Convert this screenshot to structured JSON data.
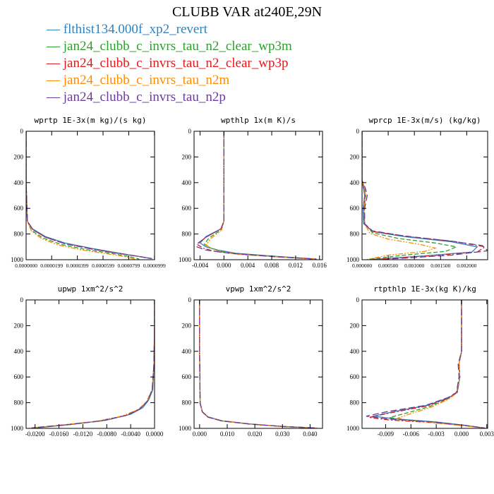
{
  "title": "CLUBB VAR at240E,29N",
  "colors": {
    "blue": "#3182bd",
    "green": "#2ca02c",
    "red": "#e31a1c",
    "orange": "#ff8c00",
    "purple": "#6a3d9a"
  },
  "legend": [
    {
      "name": "flthist134.000f_xp2_revert",
      "color": "#3182bd",
      "dash": "solid"
    },
    {
      "name": "jan24_clubb_c_invrs_tau_n2_clear_wp3m",
      "color": "#2ca02c",
      "dash": "dash"
    },
    {
      "name": "jan24_clubb_c_invrs_tau_n2_clear_wp3p",
      "color": "#e31a1c",
      "dash": "dashdot"
    },
    {
      "name": "jan24_clubb_c_invrs_tau_n2m",
      "color": "#ff8c00",
      "dash": "dashdotdot"
    },
    {
      "name": "jan24_clubb_c_invrs_tau_n2p",
      "color": "#6a3d9a",
      "dash": "longdash"
    }
  ],
  "chart_data": [
    {
      "type": "line",
      "title": "wprtp  1E-3x(m kg)/(s kg)",
      "xlim": [
        0.0,
        0.0001
      ],
      "ylim": [
        1000,
        0
      ],
      "xticks": [
        "0.0000000",
        "0.0000199",
        "0.0000399",
        "0.0000599",
        "0.0000799",
        "0.0000999"
      ],
      "yticks": [
        "0",
        "200",
        "400",
        "600",
        "800",
        "1000"
      ],
      "series": [
        {
          "name": "flthist134.000f_xp2_revert",
          "x": [
            0,
            0,
            1e-06,
            5e-06,
            1.5e-05,
            3e-05,
            5e-05,
            7e-05,
            8.5e-05,
            9.7e-05
          ],
          "y": [
            0,
            400,
            700,
            760,
            820,
            870,
            910,
            945,
            970,
            990
          ]
        },
        {
          "name": "jan24_clubb_c_invrs_tau_n2_clear_wp3m",
          "x": [
            0,
            0,
            1e-06,
            4e-06,
            1.3e-05,
            2.7e-05,
            4.6e-05,
            6.6e-05,
            8e-05,
            8.8e-05
          ],
          "y": [
            0,
            400,
            700,
            770,
            830,
            880,
            920,
            950,
            975,
            995
          ]
        },
        {
          "name": "jan24_clubb_c_invrs_tau_n2_clear_wp3p",
          "x": [
            0,
            0,
            1e-06,
            5e-06,
            1.5e-05,
            3e-05,
            5e-05,
            7e-05,
            8.6e-05,
            9.8e-05
          ],
          "y": [
            0,
            400,
            700,
            765,
            825,
            875,
            915,
            948,
            972,
            992
          ]
        },
        {
          "name": "jan24_clubb_c_invrs_tau_n2m",
          "x": [
            0,
            0,
            1e-06,
            4e-06,
            1.2e-05,
            2.5e-05,
            4.4e-05,
            6.4e-05,
            7.8e-05,
            8.5e-05
          ],
          "y": [
            0,
            400,
            700,
            775,
            835,
            885,
            925,
            955,
            978,
            997
          ]
        },
        {
          "name": "jan24_clubb_c_invrs_tau_n2p",
          "x": [
            0,
            0,
            1e-06,
            5e-06,
            1.5e-05,
            3e-05,
            5e-05,
            7e-05,
            8.6e-05,
            9.8e-05
          ],
          "y": [
            0,
            400,
            700,
            765,
            825,
            875,
            915,
            948,
            972,
            992
          ]
        }
      ]
    },
    {
      "type": "line",
      "title": "wpthlp  1x(m K)/s",
      "xlim": [
        -0.005,
        0.0165
      ],
      "ylim": [
        1000,
        0
      ],
      "xticks": [
        "-0.004",
        "0.000",
        "0.004",
        "0.008",
        "0.012",
        "0.016"
      ],
      "yticks": [
        "0",
        "200",
        "400",
        "600",
        "800",
        "1000"
      ],
      "series": [
        {
          "name": "flthist134.000f_xp2_revert",
          "x": [
            0,
            0,
            0,
            -0.0005,
            -0.003,
            -0.004,
            -0.003,
            -0.001,
            0.002,
            0.009,
            0.0155
          ],
          "y": [
            0,
            400,
            700,
            760,
            820,
            870,
            900,
            925,
            950,
            975,
            995
          ]
        },
        {
          "name": "jan24_clubb_c_invrs_tau_n2_clear_wp3m",
          "x": [
            0,
            0,
            0,
            -0.0004,
            -0.0025,
            -0.0033,
            -0.0022,
            -0.0005,
            0.0025,
            0.0095,
            0.0155
          ],
          "y": [
            0,
            400,
            700,
            765,
            830,
            880,
            910,
            935,
            955,
            978,
            995
          ]
        },
        {
          "name": "jan24_clubb_c_invrs_tau_n2_clear_wp3p",
          "x": [
            0,
            0,
            0,
            -0.0005,
            -0.003,
            -0.0045,
            -0.0035,
            -0.0015,
            0.002,
            0.009,
            0.0155
          ],
          "y": [
            0,
            400,
            700,
            760,
            825,
            880,
            910,
            935,
            955,
            978,
            995
          ]
        },
        {
          "name": "jan24_clubb_c_invrs_tau_n2m",
          "x": [
            0,
            0,
            0,
            -0.0004,
            -0.0022,
            -0.003,
            -0.002,
            -0.0005,
            0.0025,
            0.0095,
            0.0155
          ],
          "y": [
            0,
            400,
            700,
            770,
            835,
            885,
            915,
            940,
            958,
            980,
            995
          ]
        },
        {
          "name": "jan24_clubb_c_invrs_tau_n2p",
          "x": [
            0,
            0,
            0,
            -0.0005,
            -0.003,
            -0.0043,
            -0.0045,
            -0.003,
            0.001,
            0.008,
            0.0155
          ],
          "y": [
            0,
            400,
            700,
            760,
            825,
            870,
            900,
            925,
            950,
            975,
            995
          ]
        }
      ]
    },
    {
      "type": "line",
      "title": "wprcp  1E-3x(m/s) (kg/kg)",
      "xlim": [
        0.0,
        0.0024
      ],
      "ylim": [
        1000,
        0
      ],
      "xticks": [
        "0.000000",
        "0.000500",
        "0.001000",
        "0.001500",
        "0.002000"
      ],
      "yticks": [
        "0",
        "200",
        "400",
        "600",
        "800",
        "1000"
      ],
      "series": [
        {
          "name": "flthist134.000f_xp2_revert",
          "x": [
            0,
            0,
            3e-05,
            5e-05,
            2e-05,
            3e-05,
            0.0002,
            0.0008,
            0.0017,
            0.0022,
            0.0021,
            0.0012,
            0.0002
          ],
          "y": [
            0,
            380,
            450,
            500,
            600,
            720,
            780,
            820,
            860,
            900,
            940,
            970,
            998
          ]
        },
        {
          "name": "jan24_clubb_c_invrs_tau_n2_clear_wp3m",
          "x": [
            0,
            0,
            5e-05,
            7e-05,
            4e-05,
            5e-05,
            0.0002,
            0.0007,
            0.0014,
            0.0018,
            0.0016,
            0.0008,
            0.0001
          ],
          "y": [
            0,
            380,
            450,
            500,
            600,
            720,
            790,
            835,
            870,
            900,
            935,
            965,
            998
          ]
        },
        {
          "name": "jan24_clubb_c_invrs_tau_n2_clear_wp3p",
          "x": [
            0,
            0,
            4e-05,
            6e-05,
            3e-05,
            4e-05,
            0.0002,
            0.0009,
            0.0018,
            0.00235,
            0.0022,
            0.0013,
            0.0002
          ],
          "y": [
            0,
            380,
            450,
            500,
            600,
            720,
            780,
            820,
            860,
            900,
            940,
            970,
            998
          ]
        },
        {
          "name": "jan24_clubb_c_invrs_tau_n2m",
          "x": [
            0,
            0,
            5e-05,
            7e-05,
            4e-05,
            5e-05,
            0.00015,
            0.0005,
            0.0011,
            0.0014,
            0.0012,
            0.0005,
            0.0001
          ],
          "y": [
            0,
            380,
            450,
            500,
            600,
            720,
            795,
            840,
            880,
            910,
            935,
            965,
            998
          ]
        },
        {
          "name": "jan24_clubb_c_invrs_tau_n2p",
          "x": [
            0,
            0,
            6e-05,
            0.0001,
            5e-05,
            5e-05,
            0.0002,
            0.0008,
            0.0017,
            0.0023,
            0.0024,
            0.0017,
            0.0004
          ],
          "y": [
            0,
            380,
            440,
            500,
            600,
            720,
            775,
            815,
            855,
            890,
            930,
            965,
            998
          ]
        }
      ]
    },
    {
      "type": "line",
      "title": "upwp  1xm^2/s^2",
      "xlim": [
        -0.0215,
        0.0
      ],
      "ylim": [
        1000,
        0
      ],
      "xticks": [
        "-0.0200",
        "-0.0160",
        "-0.0120",
        "-0.0080",
        "-0.0040",
        "0.0000"
      ],
      "yticks": [
        "0",
        "200",
        "400",
        "600",
        "800",
        "1000"
      ],
      "series": [
        {
          "name": "flthist134.000f_xp2_revert",
          "x": [
            0,
            0,
            -0.0001,
            -0.0003,
            -0.001,
            -0.002,
            -0.004,
            -0.008,
            -0.014,
            -0.0195
          ],
          "y": [
            0,
            200,
            500,
            700,
            780,
            840,
            890,
            935,
            970,
            995
          ]
        },
        {
          "name": "jan24_clubb_c_invrs_tau_n2_clear_wp3m",
          "x": [
            0,
            0,
            -0.0001,
            -0.0004,
            -0.0012,
            -0.0024,
            -0.0045,
            -0.0085,
            -0.0145,
            -0.02
          ],
          "y": [
            0,
            200,
            500,
            700,
            785,
            845,
            895,
            940,
            972,
            996
          ]
        },
        {
          "name": "jan24_clubb_c_invrs_tau_n2_clear_wp3p",
          "x": [
            0,
            0,
            -0.0001,
            -0.0004,
            -0.0012,
            -0.0025,
            -0.0048,
            -0.009,
            -0.015,
            -0.0205
          ],
          "y": [
            0,
            200,
            500,
            700,
            790,
            850,
            900,
            942,
            973,
            996
          ]
        },
        {
          "name": "jan24_clubb_c_invrs_tau_n2m",
          "x": [
            0,
            0,
            -0.0001,
            -0.0004,
            -0.0014,
            -0.0028,
            -0.0055,
            -0.0098,
            -0.016,
            -0.021
          ],
          "y": [
            0,
            200,
            500,
            700,
            795,
            855,
            905,
            945,
            975,
            997
          ]
        },
        {
          "name": "jan24_clubb_c_invrs_tau_n2p",
          "x": [
            0,
            0,
            -0.0001,
            -0.0004,
            -0.0012,
            -0.0025,
            -0.0048,
            -0.009,
            -0.015,
            -0.0205
          ],
          "y": [
            0,
            200,
            500,
            700,
            790,
            850,
            900,
            942,
            973,
            996
          ]
        }
      ]
    },
    {
      "type": "line",
      "title": "vpwp  1xm^2/s^2",
      "xlim": [
        -0.002,
        0.0445
      ],
      "ylim": [
        1000,
        0
      ],
      "xticks": [
        "0.000",
        "0.010",
        "0.020",
        "0.030",
        "0.040"
      ],
      "yticks": [
        "0",
        "200",
        "400",
        "600",
        "800",
        "1000"
      ],
      "series": [
        {
          "name": "flthist134.000f_xp2_revert",
          "x": [
            0,
            0,
            0.0002,
            0.001,
            0.003,
            0.008,
            0.018,
            0.03,
            0.042
          ],
          "y": [
            0,
            400,
            800,
            870,
            910,
            940,
            965,
            985,
            997
          ]
        },
        {
          "name": "jan24_clubb_c_invrs_tau_n2_clear_wp3m",
          "x": [
            0,
            0,
            0.0002,
            0.001,
            0.003,
            0.008,
            0.018,
            0.03,
            0.042
          ],
          "y": [
            0,
            400,
            805,
            872,
            912,
            942,
            966,
            985,
            997
          ]
        },
        {
          "name": "jan24_clubb_c_invrs_tau_n2_clear_wp3p",
          "x": [
            0,
            0,
            0.0002,
            0.001,
            0.003,
            0.008,
            0.018,
            0.03,
            0.0425
          ],
          "y": [
            0,
            400,
            805,
            872,
            912,
            942,
            966,
            985,
            997
          ]
        },
        {
          "name": "jan24_clubb_c_invrs_tau_n2m",
          "x": [
            0,
            0,
            0.0002,
            0.001,
            0.003,
            0.008,
            0.018,
            0.03,
            0.042
          ],
          "y": [
            0,
            400,
            808,
            875,
            914,
            943,
            967,
            986,
            997
          ]
        },
        {
          "name": "jan24_clubb_c_invrs_tau_n2p",
          "x": [
            0,
            0,
            0.0002,
            0.001,
            0.003,
            0.008,
            0.018,
            0.03,
            0.0425
          ],
          "y": [
            0,
            400,
            805,
            872,
            912,
            942,
            966,
            985,
            997
          ]
        }
      ]
    },
    {
      "type": "line",
      "title": "rtpthlp  1E-3x(kg K)/kg",
      "xlim": [
        -0.0118,
        0.0031
      ],
      "ylim": [
        1000,
        0
      ],
      "xticks": [
        "-0.009",
        "-0.006",
        "-0.003",
        "0.000",
        "0.003"
      ],
      "yticks": [
        "0",
        "200",
        "400",
        "600",
        "800",
        "1000"
      ],
      "series": [
        {
          "name": "flthist134.000f_xp2_revert",
          "x": [
            0,
            0,
            -0.0003,
            -0.0002,
            -0.0005,
            -0.0015,
            -0.004,
            -0.008,
            -0.0105,
            -0.008,
            -0.003,
            0.0003,
            0.0028
          ],
          "y": [
            0,
            400,
            500,
            600,
            720,
            760,
            820,
            870,
            905,
            925,
            950,
            975,
            998
          ]
        },
        {
          "name": "jan24_clubb_c_invrs_tau_n2_clear_wp3m",
          "x": [
            0,
            0,
            -0.0003,
            -0.0002,
            -0.0006,
            -0.0016,
            -0.0038,
            -0.0065,
            -0.0085,
            -0.007,
            -0.003,
            0.0003,
            0.0028
          ],
          "y": [
            0,
            400,
            500,
            600,
            725,
            770,
            830,
            880,
            915,
            935,
            955,
            978,
            998
          ]
        },
        {
          "name": "jan24_clubb_c_invrs_tau_n2_clear_wp3p",
          "x": [
            0,
            0,
            -0.0003,
            -0.0002,
            -0.0005,
            -0.0015,
            -0.004,
            -0.0085,
            -0.011,
            -0.0085,
            -0.0035,
            0.0003,
            0.0028
          ],
          "y": [
            0,
            400,
            500,
            600,
            720,
            765,
            825,
            880,
            915,
            935,
            955,
            978,
            998
          ]
        },
        {
          "name": "jan24_clubb_c_invrs_tau_n2m",
          "x": [
            0,
            0,
            -0.0003,
            -0.0002,
            -0.0006,
            -0.0016,
            -0.0036,
            -0.006,
            -0.0075,
            -0.0065,
            -0.003,
            0.0003,
            0.0028
          ],
          "y": [
            0,
            400,
            500,
            600,
            728,
            775,
            835,
            885,
            918,
            938,
            958,
            980,
            998
          ]
        },
        {
          "name": "jan24_clubb_c_invrs_tau_n2p",
          "x": [
            0,
            0,
            -0.0004,
            -0.0003,
            -0.0006,
            -0.0016,
            -0.0042,
            -0.0088,
            -0.0113,
            -0.009,
            -0.0035,
            0.0003,
            0.0028
          ],
          "y": [
            0,
            400,
            500,
            600,
            720,
            760,
            820,
            870,
            905,
            925,
            950,
            975,
            998
          ]
        }
      ]
    }
  ]
}
